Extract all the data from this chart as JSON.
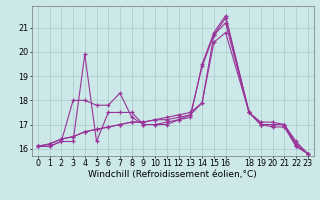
{
  "background_color": "#cce8e8",
  "grid_color": "#aacccc",
  "line_color": "#993399",
  "xlabel": "Windchill (Refroidissement éolien,°C)",
  "xlabel_fontsize": 6.5,
  "tick_fontsize": 5.8,
  "ylim": [
    15.7,
    21.9
  ],
  "yticks": [
    16,
    17,
    18,
    19,
    20,
    21
  ],
  "xlim": [
    -0.5,
    23.5
  ],
  "xticks": [
    0,
    1,
    2,
    3,
    4,
    5,
    6,
    7,
    8,
    9,
    10,
    11,
    12,
    13,
    14,
    15,
    16,
    18,
    19,
    20,
    21,
    22,
    23
  ],
  "series": [
    {
      "x": [
        0,
        1,
        2,
        3,
        4,
        5,
        6,
        7,
        8,
        9,
        10,
        11,
        12,
        13,
        14,
        15,
        16,
        18,
        19,
        20,
        21,
        22,
        23
      ],
      "y": [
        16.1,
        16.1,
        16.3,
        16.3,
        19.9,
        16.3,
        17.5,
        17.5,
        17.5,
        17.0,
        17.0,
        17.0,
        17.2,
        17.3,
        19.5,
        20.8,
        21.5,
        17.5,
        17.0,
        16.9,
        16.9,
        16.1,
        15.8
      ]
    },
    {
      "x": [
        0,
        1,
        2,
        3,
        4,
        5,
        6,
        7,
        8,
        9,
        10,
        11,
        12,
        13,
        14,
        15,
        16,
        18,
        19,
        20,
        21,
        22,
        23
      ],
      "y": [
        16.1,
        16.1,
        16.3,
        18.0,
        18.0,
        17.8,
        17.8,
        18.3,
        17.3,
        17.0,
        17.0,
        17.1,
        17.2,
        17.4,
        19.4,
        20.7,
        21.4,
        17.5,
        17.0,
        17.0,
        17.0,
        16.1,
        15.8
      ]
    },
    {
      "x": [
        0,
        1,
        2,
        3,
        4,
        5,
        6,
        7,
        8,
        9,
        10,
        11,
        12,
        13,
        14,
        15,
        16,
        18,
        19,
        20,
        21,
        22,
        23
      ],
      "y": [
        16.1,
        16.2,
        16.4,
        16.5,
        16.7,
        16.8,
        16.9,
        17.0,
        17.1,
        17.1,
        17.2,
        17.2,
        17.3,
        17.4,
        17.9,
        20.7,
        21.2,
        17.5,
        17.0,
        17.0,
        17.0,
        16.2,
        15.8
      ]
    },
    {
      "x": [
        0,
        1,
        2,
        3,
        4,
        5,
        6,
        7,
        8,
        9,
        10,
        11,
        12,
        13,
        14,
        15,
        16,
        18,
        19,
        20,
        21,
        22,
        23
      ],
      "y": [
        16.1,
        16.2,
        16.4,
        16.5,
        16.7,
        16.8,
        16.9,
        17.0,
        17.1,
        17.1,
        17.2,
        17.3,
        17.4,
        17.5,
        17.9,
        20.4,
        20.8,
        17.5,
        17.1,
        17.1,
        17.0,
        16.3,
        15.8
      ]
    }
  ]
}
